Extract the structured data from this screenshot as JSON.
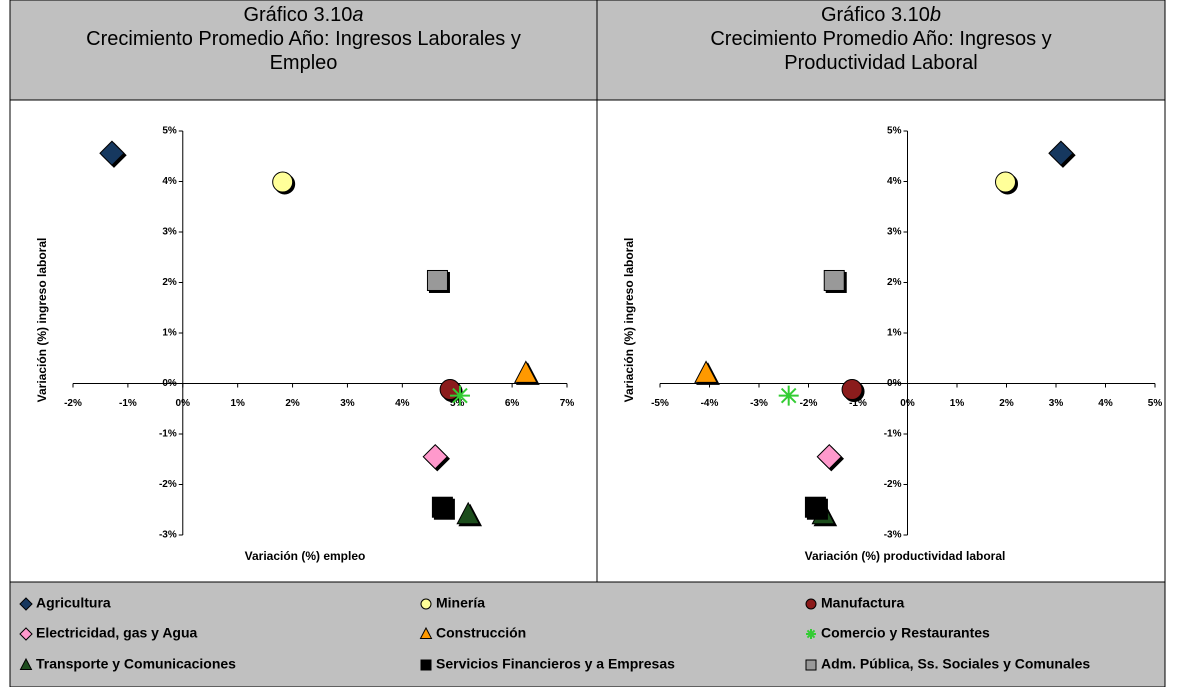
{
  "chart_data": [
    {
      "type": "scatter",
      "figure": "Gráfico 3.10",
      "figure_letter": "a",
      "title": "Crecimiento Promedio Año: Ingresos Laborales y Empleo",
      "xlabel": "Variación (%) empleo",
      "ylabel": "Variación (%) ingreso laboral",
      "xlim": [
        -2,
        7
      ],
      "ylim": [
        -3,
        5
      ],
      "xticks": [
        {
          "value": -2,
          "label": "-2%"
        },
        {
          "value": -1,
          "label": "-1%"
        },
        {
          "value": 0,
          "label": "0%"
        },
        {
          "value": 1,
          "label": "1%"
        },
        {
          "value": 2,
          "label": "2%"
        },
        {
          "value": 3,
          "label": "3%"
        },
        {
          "value": 4,
          "label": "4%"
        },
        {
          "value": 5,
          "label": "5%"
        },
        {
          "value": 6,
          "label": "6%"
        },
        {
          "value": 7,
          "label": "7%"
        }
      ],
      "yticks": [
        {
          "value": -3,
          "label": "-3%"
        },
        {
          "value": -2,
          "label": "-2%"
        },
        {
          "value": -1,
          "label": "-1%"
        },
        {
          "value": 0,
          "label": "0%"
        },
        {
          "value": 1,
          "label": "1%"
        },
        {
          "value": 2,
          "label": "2%"
        },
        {
          "value": 3,
          "label": "3%"
        },
        {
          "value": 4,
          "label": "4%"
        },
        {
          "value": 5,
          "label": "5%"
        }
      ],
      "series": [
        {
          "name": "Agricultura",
          "color": "#17375e",
          "marker": "diamond",
          "x": [
            -1.29
          ],
          "y": [
            4.56
          ]
        },
        {
          "name": "Minería",
          "color": "#ffff99",
          "marker": "circle",
          "x": [
            1.82
          ],
          "y": [
            3.99
          ]
        },
        {
          "name": "Manufactura",
          "color": "#8b1a1a",
          "marker": "circle",
          "x": [
            4.87
          ],
          "y": [
            -0.12
          ]
        },
        {
          "name": "Electricidad, gas y Agua",
          "color": "#ff99cc",
          "marker": "diamond",
          "x": [
            4.6
          ],
          "y": [
            -1.45
          ]
        },
        {
          "name": "Construcción",
          "color": "#ff9900",
          "marker": "triangle",
          "x": [
            6.25
          ],
          "y": [
            0.2
          ]
        },
        {
          "name": "Comercio y Restaurantes",
          "color": "#33cc33",
          "marker": "star",
          "x": [
            5.05
          ],
          "y": [
            -0.24
          ]
        },
        {
          "name": "Transporte y Comunicaciones",
          "color": "#1e4d1e",
          "marker": "triangle",
          "x": [
            5.2
          ],
          "y": [
            -2.6
          ]
        },
        {
          "name": "Servicios Financieros y a Empresas",
          "color": "#000000",
          "marker": "square",
          "x": [
            4.73
          ],
          "y": [
            -2.45
          ]
        },
        {
          "name": "Adm. Pública, Ss. Sociales y Comunales",
          "color": "#999999",
          "marker": "square",
          "x": [
            4.64
          ],
          "y": [
            2.04
          ]
        }
      ]
    },
    {
      "type": "scatter",
      "figure": "Gráfico 3.10",
      "figure_letter": "b",
      "title": "Crecimiento Promedio Año: Ingresos y Productividad Laboral",
      "xlabel": "Variación (%) productividad laboral",
      "ylabel": "Variación (%) ingreso laboral",
      "xlim": [
        -5,
        5
      ],
      "ylim": [
        -3,
        5
      ],
      "xticks": [
        {
          "value": -5,
          "label": "-5%"
        },
        {
          "value": -4,
          "label": "-4%"
        },
        {
          "value": -3,
          "label": "-3%"
        },
        {
          "value": -2,
          "label": "-2%"
        },
        {
          "value": -1,
          "label": "-1%"
        },
        {
          "value": 0,
          "label": "0%"
        },
        {
          "value": 1,
          "label": "1%"
        },
        {
          "value": 2,
          "label": "2%"
        },
        {
          "value": 3,
          "label": "3%"
        },
        {
          "value": 4,
          "label": "4%"
        },
        {
          "value": 5,
          "label": "5%"
        }
      ],
      "yticks": [
        {
          "value": -3,
          "label": "-3%"
        },
        {
          "value": -2,
          "label": "-2%"
        },
        {
          "value": -1,
          "label": "-1%"
        },
        {
          "value": 0,
          "label": "0%"
        },
        {
          "value": 1,
          "label": "1%"
        },
        {
          "value": 2,
          "label": "2%"
        },
        {
          "value": 3,
          "label": "3%"
        },
        {
          "value": 4,
          "label": "4%"
        },
        {
          "value": 5,
          "label": "5%"
        }
      ],
      "series": [
        {
          "color": "#17375e",
          "marker": "diamond",
          "x": [
            3.1
          ],
          "y": [
            4.56
          ]
        },
        {
          "color": "#ffff99",
          "marker": "circle",
          "x": [
            1.98
          ],
          "y": [
            3.99
          ]
        },
        {
          "color": "#8b1a1a",
          "marker": "circle",
          "x": [
            -1.12
          ],
          "y": [
            -0.12
          ]
        },
        {
          "color": "#ff99cc",
          "marker": "diamond",
          "x": [
            -1.58
          ],
          "y": [
            -1.45
          ]
        },
        {
          "color": "#ff9900",
          "marker": "triangle",
          "x": [
            -4.07
          ],
          "y": [
            0.2
          ]
        },
        {
          "color": "#33cc33",
          "marker": "star",
          "x": [
            -2.4
          ],
          "y": [
            -0.24
          ]
        },
        {
          "color": "#1e4d1e",
          "marker": "triangle",
          "x": [
            -1.7
          ],
          "y": [
            -2.6
          ]
        },
        {
          "color": "#000000",
          "marker": "square",
          "x": [
            -1.86
          ],
          "y": [
            -2.45
          ]
        },
        {
          "color": "#999999",
          "marker": "square",
          "x": [
            -1.48
          ],
          "y": [
            2.04
          ]
        }
      ]
    }
  ]
}
